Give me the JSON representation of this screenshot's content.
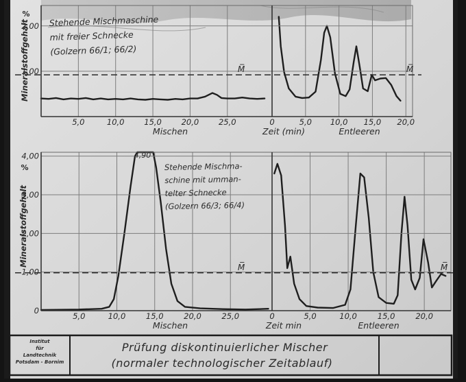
{
  "chart_data": [
    {
      "type": "line",
      "panel": "top",
      "legend_lines": [
        "Stehende Mischmaschine",
        "mit freier Schnecke",
        "(Golzern 66/1; 66/2)"
      ],
      "ylabel": "Mineralstoffgehalt",
      "yunit": "%",
      "yticks": [
        {
          "v": 2.0,
          "t": "2,00"
        },
        {
          "v": 1.0,
          "t": "1,00"
        }
      ],
      "ylim": [
        0,
        2.45
      ],
      "mean_label": "M̅",
      "mean_value": 0.92,
      "segments": [
        {
          "name": "Mischen",
          "xlim": [
            0,
            31
          ],
          "xticks": [
            {
              "v": 5,
              "t": "5,0"
            },
            {
              "v": 10,
              "t": "10,0"
            },
            {
              "v": 15,
              "t": "15,0"
            },
            {
              "v": 20,
              "t": "20,0"
            },
            {
              "v": 25,
              "t": "25,0"
            }
          ],
          "xlabel": "Mischen",
          "points": [
            [
              0,
              0.4
            ],
            [
              1,
              0.39
            ],
            [
              2,
              0.41
            ],
            [
              3,
              0.38
            ],
            [
              4,
              0.4
            ],
            [
              5,
              0.39
            ],
            [
              6,
              0.41
            ],
            [
              7,
              0.38
            ],
            [
              8,
              0.4
            ],
            [
              9,
              0.38
            ],
            [
              10,
              0.39
            ],
            [
              11,
              0.38
            ],
            [
              12,
              0.4
            ],
            [
              13,
              0.38
            ],
            [
              14,
              0.37
            ],
            [
              15,
              0.39
            ],
            [
              16,
              0.38
            ],
            [
              17,
              0.37
            ],
            [
              18,
              0.39
            ],
            [
              19,
              0.38
            ],
            [
              20,
              0.4
            ],
            [
              21,
              0.4
            ],
            [
              22,
              0.44
            ],
            [
              23,
              0.52
            ],
            [
              23.6,
              0.48
            ],
            [
              24.2,
              0.41
            ],
            [
              25,
              0.4
            ],
            [
              26,
              0.4
            ],
            [
              27,
              0.42
            ],
            [
              28,
              0.4
            ],
            [
              29,
              0.39
            ],
            [
              30,
              0.4
            ]
          ]
        },
        {
          "name": "Entleeren",
          "xlim": [
            0,
            21
          ],
          "xticks": [
            {
              "v": 0,
              "t": "0"
            },
            {
              "v": 5,
              "t": "5,0"
            },
            {
              "v": 10,
              "t": "10,0"
            },
            {
              "v": 15,
              "t": "15,0"
            },
            {
              "v": 20,
              "t": "20,0"
            }
          ],
          "xlabel": "Entleeren",
          "axis_label": "Zeit (min)",
          "points": [
            [
              1.0,
              2.2
            ],
            [
              1.3,
              1.55
            ],
            [
              1.8,
              0.98
            ],
            [
              2.5,
              0.62
            ],
            [
              3.5,
              0.44
            ],
            [
              4.5,
              0.41
            ],
            [
              5.5,
              0.42
            ],
            [
              6.5,
              0.55
            ],
            [
              7.3,
              1.25
            ],
            [
              7.8,
              1.85
            ],
            [
              8.2,
              2.0
            ],
            [
              8.7,
              1.75
            ],
            [
              9.4,
              0.95
            ],
            [
              10.2,
              0.5
            ],
            [
              11.0,
              0.45
            ],
            [
              11.6,
              0.6
            ],
            [
              12.2,
              1.2
            ],
            [
              12.6,
              1.55
            ],
            [
              13.1,
              1.1
            ],
            [
              13.6,
              0.62
            ],
            [
              14.3,
              0.56
            ],
            [
              14.9,
              0.92
            ],
            [
              15.4,
              0.8
            ],
            [
              16.2,
              0.84
            ],
            [
              17.0,
              0.85
            ],
            [
              17.8,
              0.7
            ],
            [
              18.6,
              0.45
            ],
            [
              19.2,
              0.35
            ]
          ]
        }
      ]
    },
    {
      "type": "line",
      "panel": "bottom",
      "legend_lines": [
        "Stehende Mischma-",
        "schine mit umman-",
        "telter Schnecke",
        "(Golzern 66/3; 66/4)"
      ],
      "ylabel": "Mineralstoffgehalt",
      "yunit": "%",
      "yticks": [
        {
          "v": 0,
          "t": "0"
        },
        {
          "v": 1.0,
          "t": "1,00"
        },
        {
          "v": 2.0,
          "t": "2,00"
        },
        {
          "v": 3.0,
          "t": "3,00"
        },
        {
          "v": 4.0,
          "t": "4,00"
        }
      ],
      "ylim": [
        0,
        4.1
      ],
      "mean_label": "M̅",
      "mean_value": 0.98,
      "peak_label": "4,90",
      "segments": [
        {
          "name": "Mischen",
          "xlim": [
            0,
            30.5
          ],
          "xticks": [
            {
              "v": 5,
              "t": "5,0"
            },
            {
              "v": 10,
              "t": "10,0"
            },
            {
              "v": 15,
              "t": "15,0"
            },
            {
              "v": 20,
              "t": "20,0"
            },
            {
              "v": 25,
              "t": "25,0"
            }
          ],
          "xlabel": "Mischen",
          "points": [
            [
              0,
              0.02
            ],
            [
              5,
              0.03
            ],
            [
              8,
              0.05
            ],
            [
              9.0,
              0.1
            ],
            [
              9.6,
              0.3
            ],
            [
              10.2,
              0.9
            ],
            [
              11.0,
              2.0
            ],
            [
              11.8,
              3.2
            ],
            [
              12.4,
              4.0
            ],
            [
              12.7,
              4.1
            ],
            [
              14.8,
              4.1
            ],
            [
              15.2,
              3.7
            ],
            [
              15.8,
              2.8
            ],
            [
              16.5,
              1.6
            ],
            [
              17.2,
              0.7
            ],
            [
              18.0,
              0.25
            ],
            [
              19,
              0.1
            ],
            [
              21,
              0.06
            ],
            [
              24,
              0.04
            ],
            [
              27,
              0.03
            ],
            [
              30,
              0.05
            ]
          ]
        },
        {
          "name": "Entleeren",
          "xlim": [
            0,
            23.5
          ],
          "xticks": [
            {
              "v": 0,
              "t": "0"
            },
            {
              "v": 5,
              "t": "5,0"
            },
            {
              "v": 10,
              "t": "10,0"
            },
            {
              "v": 15,
              "t": "15,0"
            },
            {
              "v": 20,
              "t": "20,0"
            }
          ],
          "xlabel": "Entleeren",
          "axis_label": "Zeit min",
          "points": [
            [
              0.3,
              3.55
            ],
            [
              0.7,
              3.8
            ],
            [
              1.2,
              3.5
            ],
            [
              1.7,
              2.2
            ],
            [
              2.0,
              1.1
            ],
            [
              2.4,
              1.4
            ],
            [
              2.9,
              0.7
            ],
            [
              3.6,
              0.3
            ],
            [
              4.5,
              0.12
            ],
            [
              6,
              0.08
            ],
            [
              8,
              0.07
            ],
            [
              9.6,
              0.15
            ],
            [
              10.3,
              0.55
            ],
            [
              11.0,
              2.2
            ],
            [
              11.6,
              3.55
            ],
            [
              12.1,
              3.45
            ],
            [
              12.7,
              2.4
            ],
            [
              13.3,
              1.0
            ],
            [
              14.0,
              0.35
            ],
            [
              15.0,
              0.2
            ],
            [
              16.0,
              0.18
            ],
            [
              16.5,
              0.4
            ],
            [
              17.0,
              2.0
            ],
            [
              17.4,
              2.95
            ],
            [
              17.8,
              2.2
            ],
            [
              18.3,
              0.8
            ],
            [
              18.8,
              0.55
            ],
            [
              19.4,
              0.85
            ],
            [
              19.9,
              1.85
            ],
            [
              20.5,
              1.25
            ],
            [
              21.0,
              0.6
            ],
            [
              21.6,
              0.78
            ],
            [
              22.2,
              0.95
            ],
            [
              22.8,
              0.9
            ]
          ]
        }
      ]
    }
  ],
  "footer": {
    "institute_lines": [
      "Institut",
      "für",
      "Landtechnik",
      "Potsdam - Bornim"
    ],
    "caption_line1": "Prüfung diskontinuierlicher Mischer",
    "caption_line2": "(normaler technologischer Zeitablauf)"
  },
  "colors": {
    "paper": "#d9d9d9",
    "border": "#141414",
    "curve": "#1e1e1e",
    "grid": "#7d7d7d"
  }
}
